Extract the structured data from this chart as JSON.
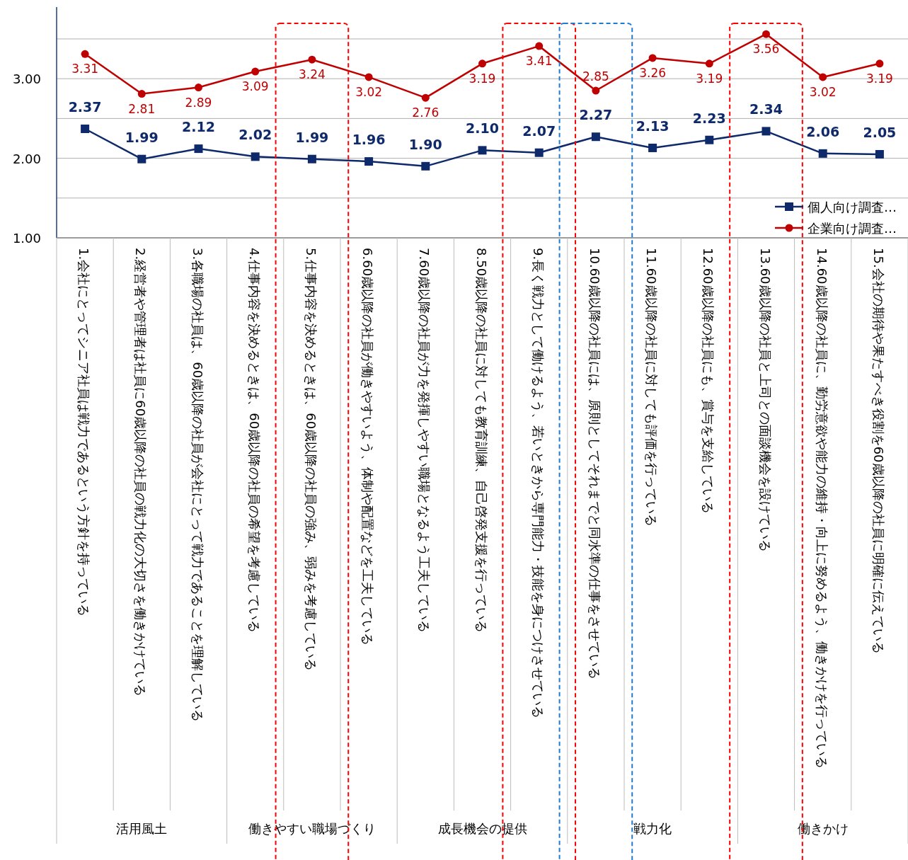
{
  "chart_data": {
    "type": "line",
    "categories": [
      "1.会社にとってシニア社員は戦力であるという方針を持っている",
      "2.経営者や管理者は社員に60歳以降の社員の戦力化の大切さを働きかけている",
      "3.各職場の社員は、60歳以降の社員が会社にとって戦力であることを理解している",
      "4.仕事内容を決めるときは、60歳以降の社員の希望を考慮している",
      "5.仕事内容を決めるときは、60歳以降の社員の強み、弱みを考慮している",
      "6.60歳以降の社員が働きやすいよう、体制や配置などを工夫している",
      "7.60歳以降の社員が力を発揮しやすい職場となるよう工夫している",
      "8.50歳以降の社員に対しても教育訓練、自己啓発支援を行っている",
      "9.長く戦力として働けるよう、若いときから専門能力・技能を身につけさせている",
      "10.60歳以降の社員には、原則としてそれまでと同水準の仕事をさせている",
      "11.60歳以降の社員に対しても評価を行っている",
      "12.60歳以降の社員にも、賞与を支給している",
      "13.60歳以降の社員と上司との面談機会を設けている",
      "14.60歳以降の社員に、勤労意欲や能力の維持・向上に努めるよう、働きかけを行っている",
      "15.会社の期待や果たすべき役割を60歳以降の社員に明確に伝えている"
    ],
    "series": [
      {
        "name": "個人向け調査…",
        "color": "#0f2a6b",
        "marker": "square",
        "values": [
          2.37,
          1.99,
          2.12,
          2.02,
          1.99,
          1.96,
          1.9,
          2.1,
          2.07,
          2.27,
          2.13,
          2.23,
          2.34,
          2.06,
          2.05
        ],
        "value_labels": [
          "2.37",
          "1.99",
          "2.12",
          "2.02",
          "1.99",
          "1.96",
          "1.90",
          "2.10",
          "2.07",
          "2.27",
          "2.13",
          "2.23",
          "2.34",
          "2.06",
          "2.05"
        ]
      },
      {
        "name": "企業向け調査…",
        "color": "#c00000",
        "marker": "circle",
        "values": [
          3.31,
          2.81,
          2.89,
          3.09,
          3.24,
          3.02,
          2.76,
          3.19,
          3.41,
          2.85,
          3.26,
          3.19,
          3.56,
          3.02,
          3.19
        ],
        "value_labels": [
          "3.31",
          "2.81",
          "2.89",
          "3.09",
          "3.24",
          "3.02",
          "2.76",
          "3.19",
          "3.41",
          "2.85",
          "3.26",
          "3.19",
          "3.56",
          "3.02",
          "3.19"
        ]
      }
    ],
    "ylim": [
      1,
      3.9
    ],
    "yticks": [
      {
        "value": 1,
        "label": "1.00"
      },
      {
        "value": 1.5,
        "label": null
      },
      {
        "value": 2,
        "label": "2.00"
      },
      {
        "value": 2.5,
        "label": null
      },
      {
        "value": 3,
        "label": "3.00"
      },
      {
        "value": 3.5,
        "label": null
      }
    ],
    "grid": "y",
    "legend": "bottom right",
    "line_style": "solid",
    "annotations": [
      "活用風土",
      "働きやすい職場づくり",
      "成長機会の提供",
      "戦力化",
      "働きかけ"
    ]
  }
}
